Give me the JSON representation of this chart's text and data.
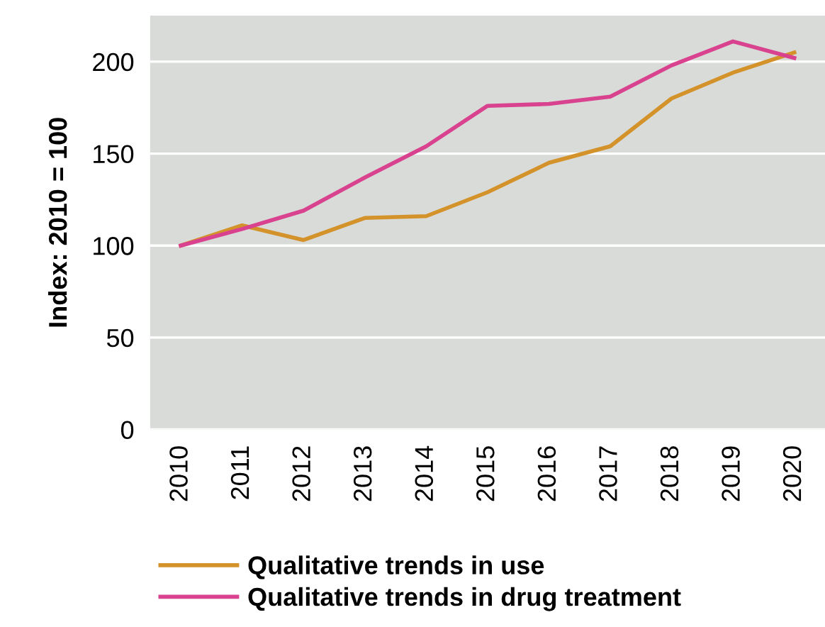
{
  "chart_data": {
    "type": "line",
    "ylabel": "Index: 2010 = 100",
    "categories": [
      "2010",
      "2011",
      "2012",
      "2013",
      "2014",
      "2015",
      "2016",
      "2017",
      "2018",
      "2019",
      "2020"
    ],
    "series": [
      {
        "name": "Qualitative trends in use",
        "color": "#d4922a",
        "values": [
          100,
          111,
          103,
          115,
          116,
          129,
          145,
          154,
          180,
          194,
          205
        ]
      },
      {
        "name": "Qualitative trends in drug treatment",
        "color": "#d9428f",
        "values": [
          100,
          109,
          119,
          137,
          154,
          176,
          177,
          181,
          198,
          211,
          202
        ]
      }
    ],
    "ylim": [
      0,
      225
    ],
    "yticks": [
      0,
      50,
      100,
      150,
      200
    ],
    "grid": "y",
    "legend": "bottom",
    "marker": "none",
    "line_style": "solid"
  }
}
